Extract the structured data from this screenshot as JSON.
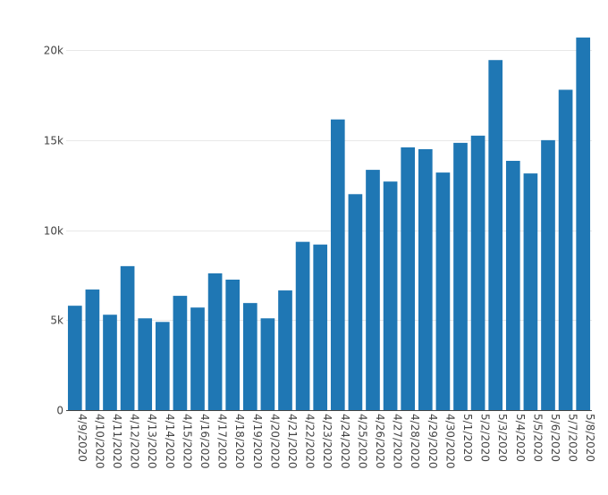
{
  "chart_data": {
    "type": "bar",
    "title": "",
    "xlabel": "",
    "ylabel": "",
    "categories": [
      "4/9/2020",
      "4/10/2020",
      "4/11/2020",
      "4/12/2020",
      "4/13/2020",
      "4/14/2020",
      "4/15/2020",
      "4/16/2020",
      "4/17/2020",
      "4/18/2020",
      "4/19/2020",
      "4/20/2020",
      "4/21/2020",
      "4/22/2020",
      "4/23/2020",
      "4/24/2020",
      "4/25/2020",
      "4/26/2020",
      "4/27/2020",
      "4/28/2020",
      "4/29/2020",
      "4/30/2020",
      "5/1/2020",
      "5/2/2020",
      "5/3/2020",
      "5/4/2020",
      "5/5/2020",
      "5/6/2020",
      "5/7/2020",
      "5/8/2020"
    ],
    "values": [
      5800,
      6700,
      5300,
      8000,
      5100,
      4900,
      6350,
      5700,
      7600,
      7250,
      5950,
      5100,
      6650,
      9350,
      9200,
      16150,
      12000,
      13350,
      12700,
      14600,
      14500,
      13200,
      14850,
      15250,
      19450,
      13850,
      13150,
      15000,
      17800,
      20700
    ],
    "ylim": [
      0,
      21000
    ],
    "yticks": [
      0,
      5000,
      10000,
      15000,
      20000
    ],
    "ytick_labels": [
      "0",
      "5k",
      "10k",
      "15k",
      "20k"
    ],
    "grid": true,
    "legend": "none",
    "bar_color": "#1f77b4"
  }
}
